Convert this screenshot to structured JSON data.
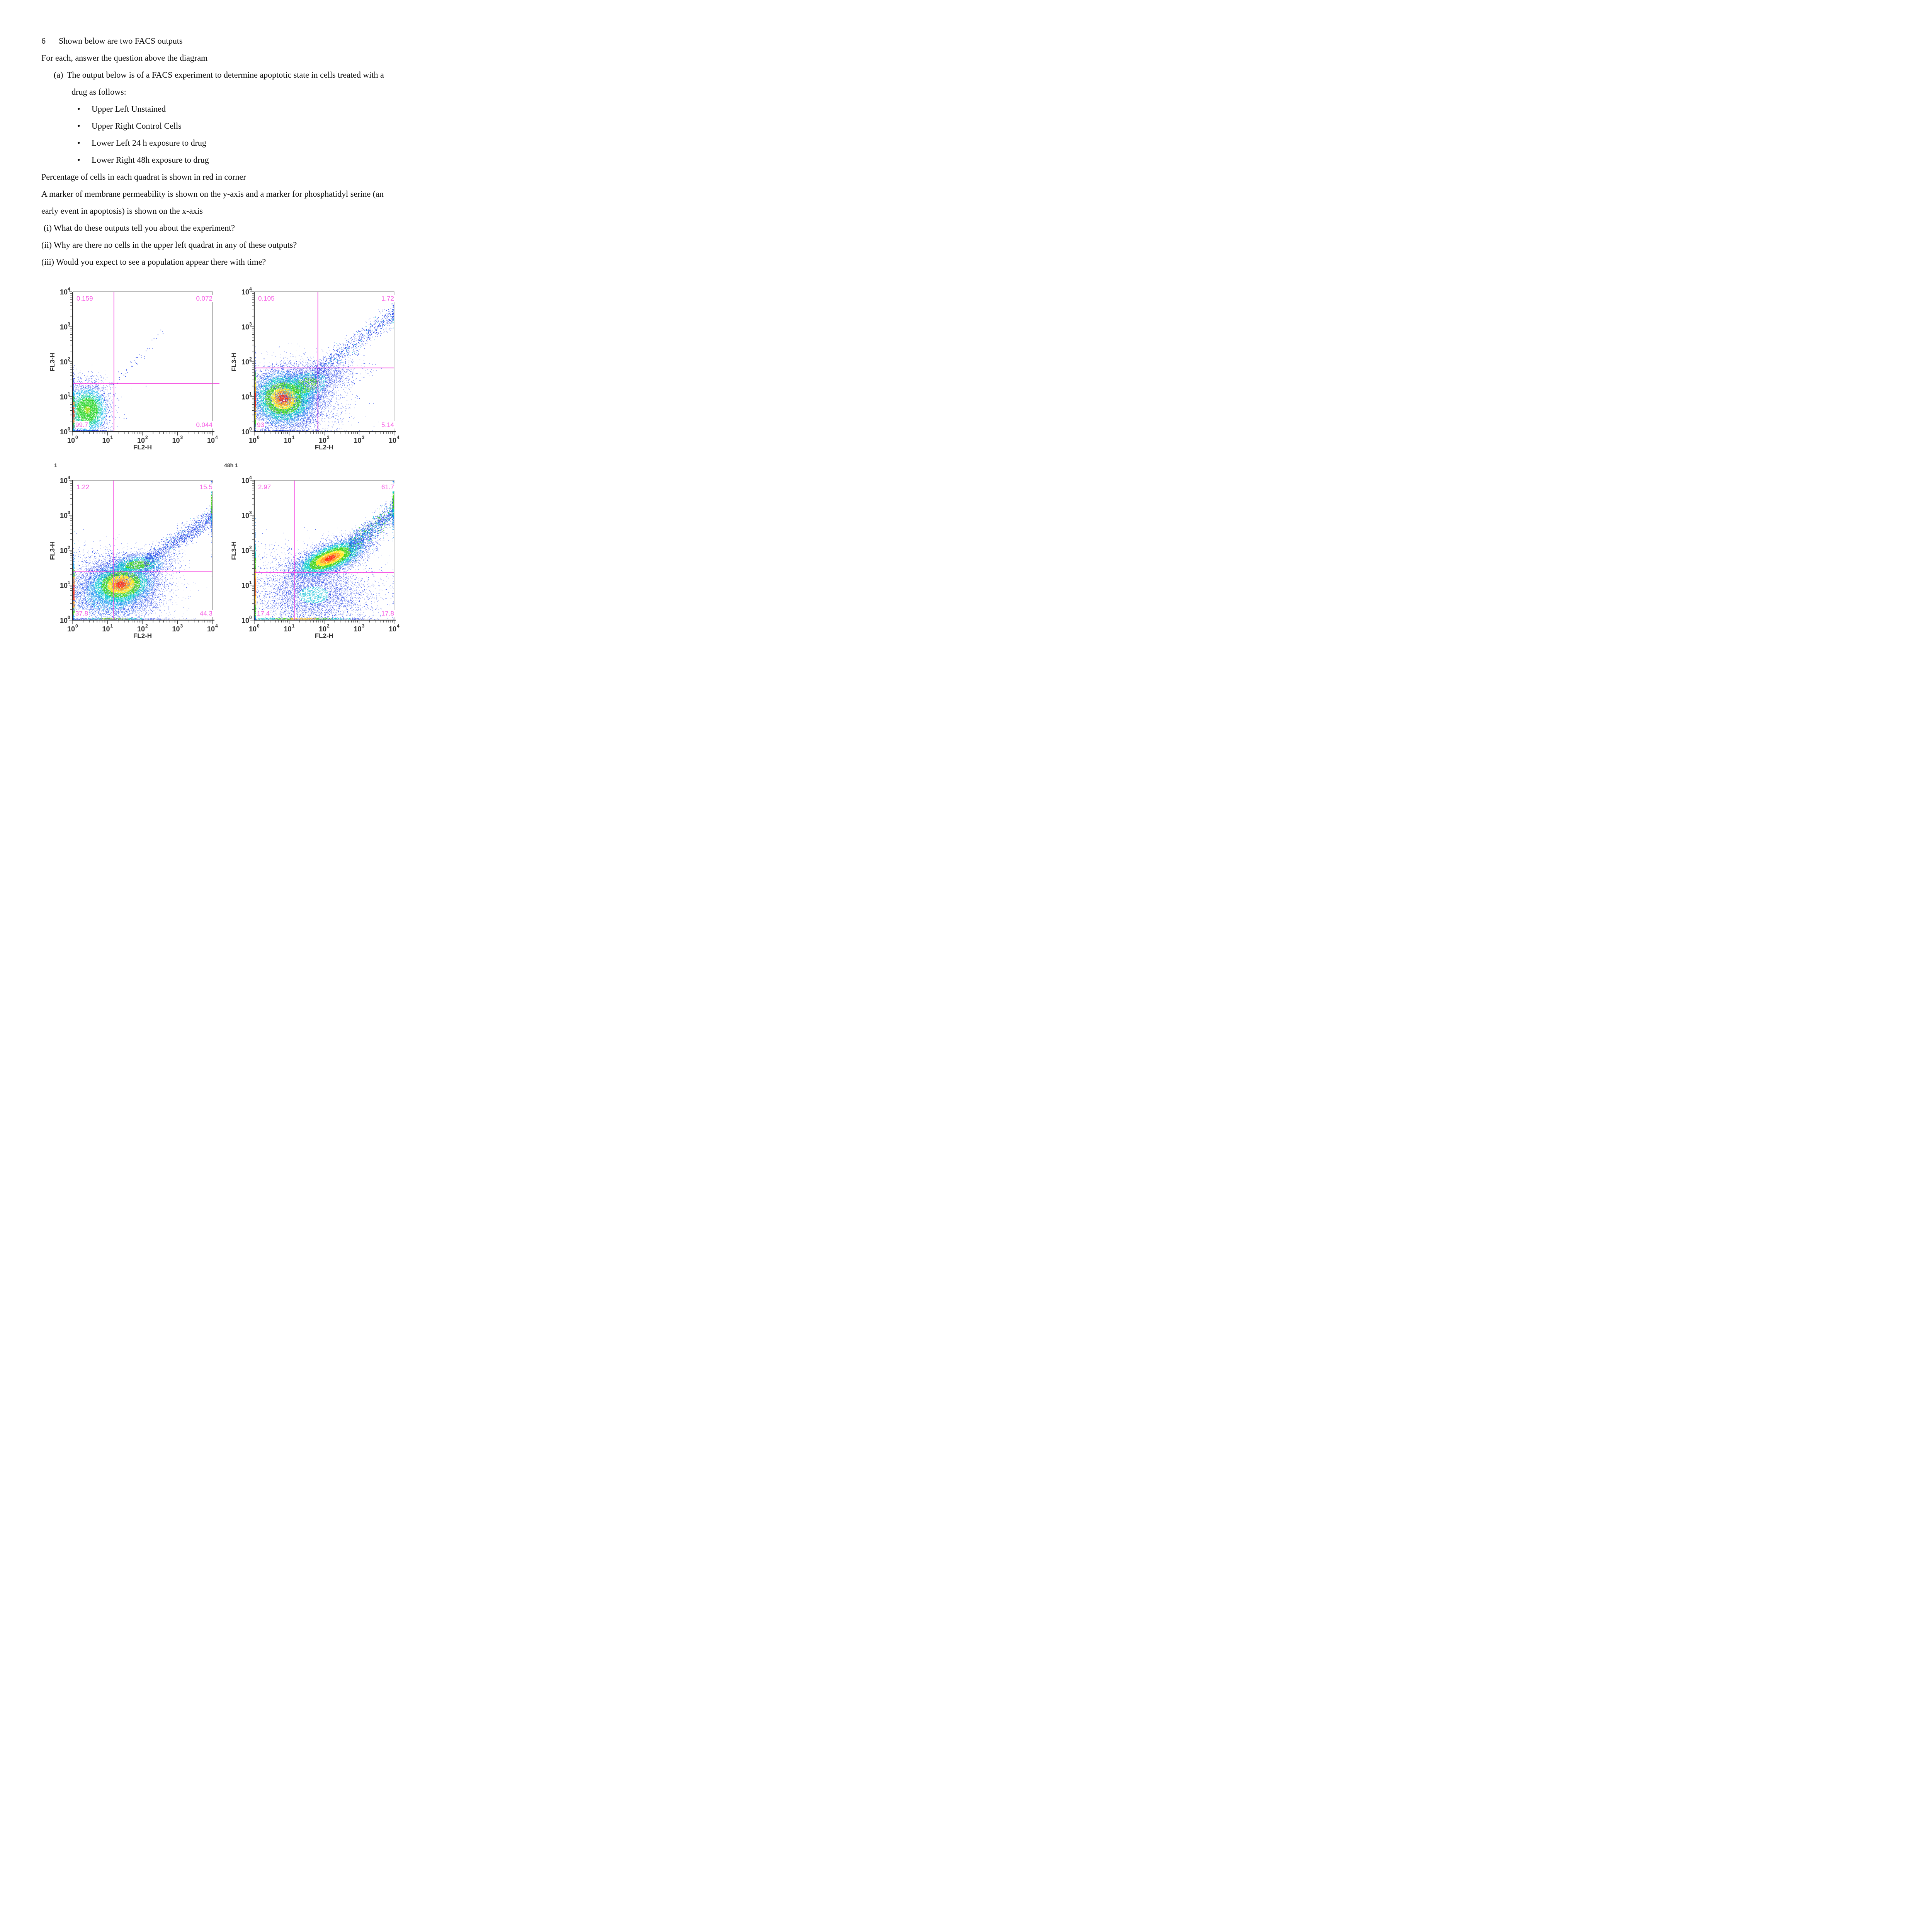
{
  "document": {
    "bullet_glyph": "•",
    "q_number": "6",
    "marker_a": "(a)",
    "lines": {
      "heading": "Shown below are two FACS outputs",
      "intro": "For each, answer the question above the diagram",
      "a_line1": "The output below is of a FACS experiment to determine apoptotic state in cells treated with a",
      "a_line2": "drug as follows:",
      "bullet1": "Upper Left Unstained",
      "bullet2": "Upper Right Control Cells",
      "bullet3": "Lower Left 24 h exposure to drug",
      "bullet4": "Lower Right 48h exposure to drug",
      "p1": "Percentage of cells in each quadrat is shown in red in corner",
      "p2a": "A marker of membrane permeability is shown on the y-axis and a marker for phosphatidyl serine (an",
      "p2b": "early event in apoptosis) is shown on the x-axis",
      "qi": "(i) What do these outputs tell you about the experiment?",
      "qii": "(ii) Why are there no cells in the upper left quadrat in any of these outputs?",
      "qiii": "(iii) Would you expect to see a population appear there with time?"
    }
  },
  "chart_data": {
    "type": "scatter",
    "style": {
      "quad_line": "#f428dc",
      "quad_label": "#f75ae4",
      "axis": "#2d2d2d",
      "frame_gray": "#9b9b9b",
      "tick_text": "#2e2e2e"
    },
    "charts": [
      {
        "panel_label": "",
        "xlabel": "FL2-H",
        "ylabel": "FL3-H",
        "tick_base": "10",
        "x_ticks": [
          "0",
          "1",
          "2",
          "3",
          "4"
        ],
        "y_ticks": [
          "0",
          "1",
          "2",
          "3",
          "4"
        ],
        "log_range": [
          0,
          4
        ],
        "quad_x_log": 1.18,
        "quad_y_log": 1.37,
        "h_overshoot": 18,
        "quadrants": {
          "ul": "0.159",
          "ur": "0.072",
          "ll": "99.7",
          "lr": "0.044"
        },
        "populations": [
          {
            "kind": "gauss",
            "cx": 0.42,
            "cy": 0.62,
            "sx": 0.3,
            "sy": 0.35,
            "rot": 0,
            "n": 5200,
            "levels": [
              [
                0.3,
                "#9ade0f"
              ],
              [
                1.0,
                "#2ad42a"
              ],
              [
                1.35,
                "#10cfa0"
              ],
              [
                1.8,
                "#19b4ef"
              ],
              [
                9,
                "#2a48e8"
              ]
            ]
          },
          {
            "kind": "gauss",
            "cx": 0.5,
            "cy": 1.35,
            "sx": 0.45,
            "sy": 0.18,
            "rot": 0,
            "n": 140,
            "levels": [
              [
                9,
                "#2a48e8"
              ]
            ]
          },
          {
            "kind": "tail",
            "x0": 1.05,
            "x1": 2.6,
            "slope": 1.08,
            "intercept": 0.05,
            "jitter": 0.1,
            "n": 42,
            "size": 1.7,
            "levels": [
              [
                9,
                "#2a48e8"
              ]
            ]
          },
          {
            "kind": "strip",
            "axis": "left",
            "center": 0.55,
            "spread": 0.42,
            "n": 300,
            "levels": [
              [
                0.35,
                "#ff4018"
              ],
              [
                0.7,
                "#ff9c1c"
              ],
              [
                1.1,
                "#27c527"
              ],
              [
                1.6,
                "#00bfe8"
              ],
              [
                9,
                "#2a48e8"
              ]
            ]
          },
          {
            "kind": "dots",
            "size": 1.8,
            "color": "#2a48e8",
            "pts": [
              [
                2.44,
                2.77
              ],
              [
                1.82,
                2.12
              ],
              [
                1.9,
                2.2
              ],
              [
                1.32,
                0.9
              ],
              [
                1.47,
                0.38
              ],
              [
                2.1,
                1.3
              ]
            ]
          }
        ]
      },
      {
        "panel_label": "",
        "xlabel": "FL2-H",
        "ylabel": "FL3-H",
        "tick_base": "10",
        "x_ticks": [
          "0",
          "1",
          "2",
          "3",
          "4"
        ],
        "y_ticks": [
          "0",
          "1",
          "2",
          "3",
          "4"
        ],
        "log_range": [
          0,
          4
        ],
        "quad_x_log": 1.82,
        "quad_y_log": 1.82,
        "h_overshoot": 0,
        "quadrants": {
          "ul": "0.105",
          "ur": "1.72",
          "ll": "93",
          "lr": "5.14"
        },
        "populations": [
          {
            "kind": "gauss",
            "cx": 1.05,
            "cy": 0.95,
            "sx": 0.62,
            "sy": 0.44,
            "rot": 10,
            "n": 4000,
            "levels": [
              [
                1.0,
                "#19b4ef"
              ],
              [
                1.5,
                "#2e62f2"
              ],
              [
                9,
                "#2a48e8"
              ]
            ]
          },
          {
            "kind": "gauss",
            "cx": 0.84,
            "cy": 0.95,
            "sx": 0.46,
            "sy": 0.4,
            "rot": 0,
            "n": 9000,
            "levels": [
              [
                0.3,
                "#ff3414"
              ],
              [
                0.55,
                "#ff9c1c"
              ],
              [
                0.78,
                "#ffe81c"
              ],
              [
                1.15,
                "#3fd414"
              ],
              [
                1.55,
                "#00ccc4"
              ],
              [
                1.95,
                "#1e86f0"
              ],
              [
                9,
                "#2a48e8"
              ]
            ]
          },
          {
            "kind": "gauss",
            "cx": 1.45,
            "cy": 1.32,
            "sx": 0.5,
            "sy": 0.26,
            "rot": 15,
            "n": 2200,
            "levels": [
              [
                0.8,
                "#3fd414"
              ],
              [
                1.3,
                "#00c4d8"
              ],
              [
                9,
                "#2a48e8"
              ]
            ]
          },
          {
            "kind": "gauss",
            "cx": 2.1,
            "cy": 1.62,
            "sx": 0.55,
            "sy": 0.18,
            "rot": 10,
            "n": 700,
            "levels": [
              [
                9,
                "#2a48e8"
              ]
            ]
          },
          {
            "kind": "tail",
            "x0": 1.7,
            "x1": 4.1,
            "slope": 0.73,
            "intercept": 0.42,
            "jitter": 0.16,
            "n": 900,
            "size": 1.5,
            "levels": [
              [
                0.1,
                "#00c4d8"
              ],
              [
                9,
                "#2a48e8"
              ]
            ]
          },
          {
            "kind": "strip",
            "axis": "left",
            "center": 0.9,
            "spread": 0.5,
            "n": 420,
            "levels": [
              [
                0.4,
                "#ff3414"
              ],
              [
                0.75,
                "#ff9c1c"
              ],
              [
                1.15,
                "#ffe81c"
              ],
              [
                1.6,
                "#3fd414"
              ],
              [
                9,
                "#2a48e8"
              ]
            ]
          },
          {
            "kind": "gauss",
            "cx": 1.75,
            "cy": 0.55,
            "sx": 0.55,
            "sy": 0.35,
            "rot": 0,
            "n": 420,
            "levels": [
              [
                9,
                "#2a48e8"
              ]
            ]
          }
        ]
      },
      {
        "panel_label": "1",
        "xlabel": "FL2-H",
        "ylabel": "FL3-H",
        "tick_base": "10",
        "x_ticks": [
          "0",
          "1",
          "2",
          "3",
          "4"
        ],
        "y_ticks": [
          "0",
          "1",
          "2",
          "3",
          "4"
        ],
        "log_range": [
          0,
          4
        ],
        "quad_x_log": 1.16,
        "quad_y_log": 1.4,
        "h_overshoot": 0,
        "quadrants": {
          "ul": "1.22",
          "ur": "15.5",
          "ll": "37.8",
          "lr": "44.3"
        },
        "populations": [
          {
            "kind": "gauss",
            "cx": 1.05,
            "cy": 0.72,
            "sx": 0.78,
            "sy": 0.5,
            "rot": 0,
            "n": 5200,
            "levels": [
              [
                0.9,
                "#19b4ef"
              ],
              [
                1.4,
                "#2e62f2"
              ],
              [
                9,
                "#2a48e8"
              ]
            ]
          },
          {
            "kind": "gauss",
            "cx": 1.38,
            "cy": 1.02,
            "sx": 0.5,
            "sy": 0.33,
            "rot": 8,
            "n": 9000,
            "levels": [
              [
                0.28,
                "#ff3414"
              ],
              [
                0.52,
                "#ff9c1c"
              ],
              [
                0.78,
                "#ffe81c"
              ],
              [
                1.12,
                "#3fd414"
              ],
              [
                1.5,
                "#00ccc4"
              ],
              [
                1.9,
                "#1e86f0"
              ],
              [
                9,
                "#2a48e8"
              ]
            ]
          },
          {
            "kind": "gauss",
            "cx": 1.85,
            "cy": 1.58,
            "sx": 0.5,
            "sy": 0.17,
            "rot": 5,
            "n": 2300,
            "levels": [
              [
                0.7,
                "#3fd414"
              ],
              [
                1.15,
                "#00ccc4"
              ],
              [
                1.6,
                "#1e86f0"
              ],
              [
                9,
                "#2a48e8"
              ]
            ]
          },
          {
            "kind": "tail",
            "x0": 2.05,
            "x1": 4.12,
            "slope": 0.66,
            "intercept": 0.3,
            "jitter": 0.15,
            "n": 1500,
            "size": 1.4,
            "levels": [
              [
                0.08,
                "#00c4d8"
              ],
              [
                9,
                "#2a48e8"
              ]
            ]
          },
          {
            "kind": "strip",
            "axis": "right",
            "center": 3.3,
            "spread": 0.6,
            "n": 300,
            "levels": [
              [
                0.45,
                "#3fd414"
              ],
              [
                0.8,
                "#19c2d8"
              ],
              [
                9,
                "#2e62f2"
              ]
            ]
          },
          {
            "kind": "strip",
            "axis": "left",
            "center": 0.8,
            "spread": 0.55,
            "n": 420,
            "levels": [
              [
                0.4,
                "#ff3414"
              ],
              [
                0.8,
                "#ff9c1c"
              ],
              [
                1.2,
                "#3fd414"
              ],
              [
                9,
                "#19b4ef"
              ]
            ]
          },
          {
            "kind": "strip",
            "axis": "bottom",
            "center": 1.2,
            "spread": 0.8,
            "n": 300,
            "levels": [
              [
                0.5,
                "#7ad414"
              ],
              [
                1.0,
                "#00ccc4"
              ],
              [
                9,
                "#2a48e8"
              ]
            ]
          },
          {
            "kind": "gauss",
            "cx": 0.55,
            "cy": 1.75,
            "sx": 0.4,
            "sy": 0.28,
            "rot": 0,
            "n": 70,
            "levels": [
              [
                9,
                "#2a48e8"
              ]
            ]
          }
        ]
      },
      {
        "panel_label": "48h 1",
        "xlabel": "FL2-H",
        "ylabel": "FL3-H",
        "tick_base": "10",
        "x_ticks": [
          "0",
          "1",
          "2",
          "3",
          "4"
        ],
        "y_ticks": [
          "0",
          "1",
          "2",
          "3",
          "4"
        ],
        "log_range": [
          0,
          4
        ],
        "quad_x_log": 1.16,
        "quad_y_log": 1.37,
        "h_overshoot": 0,
        "quadrants": {
          "ul": "2.97",
          "ur": "61.7",
          "ll": "17.4",
          "lr": "17.8"
        },
        "populations": [
          {
            "kind": "gauss",
            "cx": 1.7,
            "cy": 0.72,
            "sx": 0.85,
            "sy": 0.48,
            "rot": 0,
            "n": 5200,
            "levels": [
              [
                0.5,
                "#19c2d8"
              ],
              [
                9,
                "#2a48e8"
              ]
            ]
          },
          {
            "kind": "gauss",
            "cx": 2.17,
            "cy": 1.77,
            "sx": 0.55,
            "sy": 0.2,
            "rot": 22,
            "n": 8500,
            "levels": [
              [
                0.3,
                "#ff3414"
              ],
              [
                0.55,
                "#ff9c1c"
              ],
              [
                0.8,
                "#ffe81c"
              ],
              [
                1.15,
                "#3fd414"
              ],
              [
                1.55,
                "#00ccc4"
              ],
              [
                1.95,
                "#1e86f0"
              ],
              [
                9,
                "#2a48e8"
              ]
            ]
          },
          {
            "kind": "tail",
            "x0": 2.7,
            "x1": 4.1,
            "slope": 0.78,
            "intercept": -0.02,
            "jitter": 0.17,
            "n": 1700,
            "size": 1.4,
            "levels": [
              [
                0.12,
                "#3fd414"
              ],
              [
                0.35,
                "#00c4d8"
              ],
              [
                9,
                "#2a48e8"
              ]
            ]
          },
          {
            "kind": "strip",
            "axis": "right",
            "center": 3.4,
            "spread": 0.45,
            "n": 330,
            "levels": [
              [
                0.5,
                "#3fd414"
              ],
              [
                0.95,
                "#00ccc4"
              ],
              [
                9,
                "#1e86f0"
              ]
            ]
          },
          {
            "kind": "strip",
            "axis": "left",
            "center": 0.95,
            "spread": 0.75,
            "n": 600,
            "levels": [
              [
                0.35,
                "#ff7014"
              ],
              [
                0.7,
                "#ffc41c"
              ],
              [
                1.1,
                "#3fd414"
              ],
              [
                1.6,
                "#00ccc4"
              ],
              [
                9,
                "#1e86f0"
              ]
            ]
          },
          {
            "kind": "strip",
            "axis": "bottom",
            "center": 1.4,
            "spread": 0.9,
            "n": 520,
            "levels": [
              [
                0.4,
                "#ffc41c"
              ],
              [
                0.9,
                "#3fd414"
              ],
              [
                1.5,
                "#00ccc4"
              ],
              [
                9,
                "#2a48e8"
              ]
            ]
          },
          {
            "kind": "gauss",
            "cx": 0.6,
            "cy": 1.85,
            "sx": 0.45,
            "sy": 0.32,
            "rot": 0,
            "n": 110,
            "levels": [
              [
                9,
                "#2a48e8"
              ]
            ]
          }
        ]
      }
    ]
  }
}
